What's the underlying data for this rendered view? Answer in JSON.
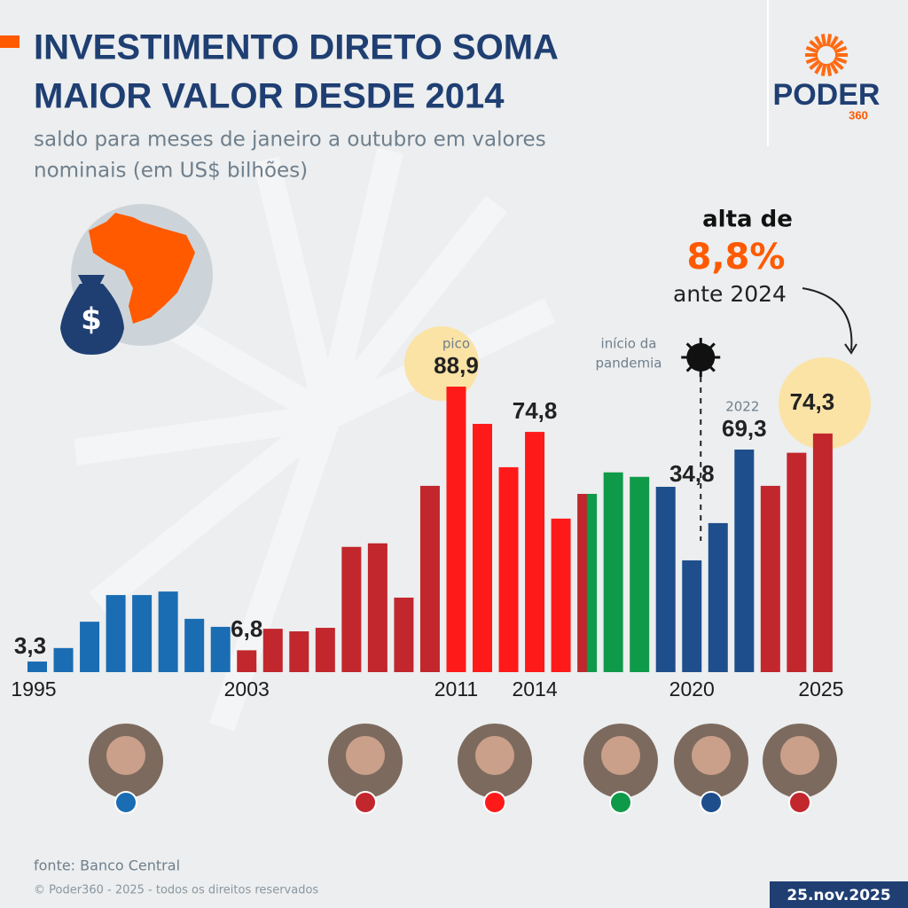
{
  "chart_data": {
    "type": "bar",
    "title": [
      "INVESTIMENTO DIRETO SOMA",
      "MAIOR VALOR DESDE 2014"
    ],
    "subtitle": [
      "saldo para meses de janeiro a outubro em valores",
      "nominais (em US$ bilhões)"
    ],
    "categories": [
      "1995",
      null,
      null,
      null,
      null,
      null,
      null,
      null,
      "2003",
      null,
      null,
      null,
      null,
      null,
      null,
      null,
      "2011",
      null,
      null,
      "2014",
      null,
      null,
      null,
      null,
      null,
      "2020",
      null,
      null,
      null,
      null,
      "2025"
    ],
    "values": [
      3.3,
      7.5,
      15.7,
      24.0,
      24.0,
      25.1,
      16.6,
      14.1,
      6.8,
      13.5,
      12.7,
      13.8,
      39.0,
      40.1,
      23.2,
      58.0,
      88.9,
      77.3,
      63.8,
      74.8,
      47.8,
      55.5,
      62.2,
      60.8,
      57.7,
      34.8,
      46.4,
      69.3,
      58.0,
      68.3,
      74.3
    ],
    "value_labels": [
      "3,3",
      null,
      null,
      null,
      null,
      null,
      null,
      null,
      "6,8",
      null,
      null,
      null,
      null,
      null,
      null,
      null,
      "88,9",
      null,
      null,
      "74,8",
      null,
      null,
      null,
      null,
      null,
      "34,8",
      null,
      "69,3",
      null,
      null,
      "74,3"
    ],
    "colors": [
      "#1a6db3",
      "#1a6db3",
      "#1a6db3",
      "#1a6db3",
      "#1a6db3",
      "#1a6db3",
      "#1a6db3",
      "#1a6db3",
      "#c1272d",
      "#c1272d",
      "#c1272d",
      "#c1272d",
      "#c1272d",
      "#c1272d",
      "#c1272d",
      "#c1272d",
      "#ff1a1a",
      "#ff1a1a",
      "#ff1a1a",
      "#ff1a1a",
      "#ff1a1a",
      [
        "#c1272d",
        "#0f9a4a"
      ],
      "#0f9a4a",
      "#0f9a4a",
      "#1f4e8c",
      "#1f4e8c",
      "#1f4e8c",
      "#1f4e8c",
      "#c1272d",
      "#c1272d",
      "#c1272d"
    ],
    "ylim": [
      0,
      88.9
    ],
    "annotations": {
      "peak": "pico",
      "year_2022": "2022",
      "pandemic": [
        "início da",
        "pandemia"
      ],
      "change_intro": "alta de",
      "change_value": "8,8%",
      "change_ref": "ante 2024"
    }
  },
  "source": "fonte: Banco Central",
  "copyright": "© Poder360 - 2025 - todos os direitos reservados",
  "date": "25.nov.2025",
  "brand": {
    "name": "PODER",
    "number": "360"
  }
}
